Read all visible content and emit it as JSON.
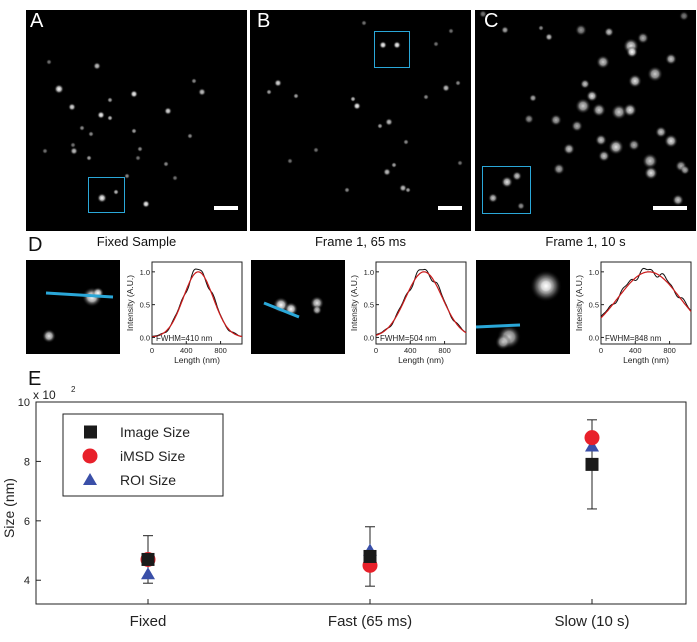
{
  "panels": {
    "A": {
      "letter": "A",
      "caption": "Fixed Sample"
    },
    "B": {
      "letter": "B",
      "caption": "Frame 1, 65 ms"
    },
    "C": {
      "letter": "C",
      "caption": "Frame 1, 10 s"
    },
    "D": {
      "letter": "D"
    },
    "E": {
      "letter": "E"
    }
  },
  "profiles": [
    {
      "fwhm_label": "FWHM=410 nm",
      "ylabel": "Intensity (A.U.)",
      "xlabel": "Length (nm)",
      "xticks": [
        "0",
        "400",
        "800"
      ],
      "yticks": [
        "0.0",
        "0.5",
        "1.0"
      ]
    },
    {
      "fwhm_label": "FWHM=504 nm",
      "ylabel": "Intensity (A.U.)",
      "xlabel": "Length (nm)",
      "xticks": [
        "0",
        "400",
        "800"
      ],
      "yticks": [
        "0.0",
        "0.5",
        "1.0"
      ]
    },
    {
      "fwhm_label": "FWHM=848 nm",
      "ylabel": "Intensity (A.U.)",
      "xlabel": "Length (nm)",
      "xticks": [
        "0",
        "400",
        "800"
      ],
      "yticks": [
        "0.0",
        "0.5",
        "1.0"
      ]
    }
  ],
  "colors": {
    "roi": "#2aa7d8",
    "black_series": "#1a1a1a",
    "red_series": "#e8202a",
    "blue_series": "#3a4fa8",
    "profile_black": "#111111",
    "profile_red": "#cc1a1a"
  },
  "chart_data": [
    {
      "type": "scatter",
      "title": "",
      "ylabel": "Size (nm)",
      "y_multiplier": "x 10",
      "y_multiplier_exp": "2",
      "categories": [
        "Fixed",
        "Fast (65 ms)",
        "Slow (10 s)"
      ],
      "yticks": [
        "4",
        "6",
        "8",
        "10"
      ],
      "ylim": [
        3.2,
        10
      ],
      "legend_position": "top-left",
      "series": [
        {
          "name": "Image Size",
          "marker": "square",
          "color": "#1a1a1a",
          "values": [
            4.7,
            4.8,
            7.9
          ],
          "err": [
            0.8,
            1.0,
            1.5
          ]
        },
        {
          "name": "iMSD Size",
          "marker": "circle",
          "color": "#e8202a",
          "values": [
            4.7,
            4.5,
            8.8
          ]
        },
        {
          "name": "ROI Size",
          "marker": "triangle",
          "color": "#3a4fa8",
          "values": [
            4.2,
            5.0,
            8.5
          ]
        }
      ]
    },
    {
      "type": "line",
      "xlabel": "Length (nm)",
      "ylabel": "Intensity (A.U.)",
      "xlim": [
        0,
        1050
      ],
      "ylim": [
        -0.1,
        1.15
      ],
      "series": [
        {
          "name": "",
          "fwhm": 410,
          "center": 540
        }
      ]
    },
    {
      "type": "line",
      "xlabel": "Length (nm)",
      "ylabel": "Intensity (A.U.)",
      "xlim": [
        0,
        1050
      ],
      "ylim": [
        -0.1,
        1.15
      ],
      "series": [
        {
          "name": "",
          "fwhm": 504,
          "center": 560
        }
      ]
    },
    {
      "type": "line",
      "xlabel": "Length (nm)",
      "ylabel": "Intensity (A.U.)",
      "xlim": [
        0,
        1050
      ],
      "ylim": [
        -0.1,
        1.15
      ],
      "series": [
        {
          "name": "",
          "fwhm": 848,
          "center": 560
        }
      ]
    }
  ]
}
